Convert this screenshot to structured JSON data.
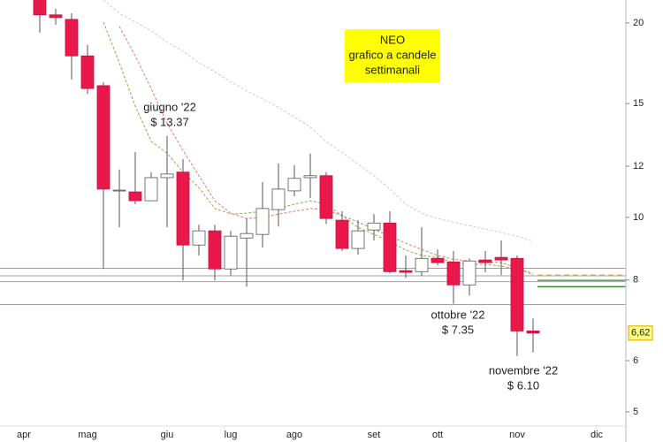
{
  "chart_data": {
    "type": "candlestick",
    "categories": [
      "apr",
      null,
      null,
      null,
      "mag",
      null,
      null,
      null,
      null,
      "giu",
      null,
      null,
      null,
      "lug",
      null,
      null,
      null,
      "ago",
      null,
      null,
      null,
      null,
      "set",
      null,
      null,
      null,
      "ott",
      null,
      null,
      null,
      null,
      "nov",
      null,
      null,
      null,
      null,
      "dic"
    ],
    "open": [
      null,
      22.5,
      20.58,
      20.25,
      17.78,
      15.99,
      11.0,
      10.95,
      10.61,
      11.52,
      11.75,
      9.06,
      9.53,
      8.32,
      9.29,
      9.41,
      10.28,
      10.99,
      11.52,
      11.6,
      9.9,
      8.95,
      9.56,
      9.8,
      8.27,
      8.24,
      8.64,
      8.53,
      7.86,
      8.59,
      8.67,
      8.64,
      6.67,
      null,
      null,
      null,
      null
    ],
    "high": [
      null,
      23.5,
      21.03,
      20.7,
      18.5,
      16.19,
      11.86,
      12.62,
      11.75,
      13.37,
      12.31,
      9.74,
      9.74,
      9.53,
      9.96,
      11.34,
      12.12,
      12.05,
      12.55,
      11.75,
      10.22,
      9.9,
      10.12,
      10.22,
      8.73,
      9.65,
      8.92,
      8.87,
      8.64,
      8.87,
      9.21,
      8.73,
      6.97,
      null,
      null,
      null,
      null
    ],
    "low": [
      null,
      19.32,
      19.87,
      16.35,
      15.52,
      8.32,
      9.65,
      10.48,
      10.61,
      9.65,
      7.99,
      8.73,
      7.99,
      8.12,
      7.81,
      8.98,
      9.68,
      10.78,
      10.71,
      9.77,
      8.87,
      8.76,
      9.21,
      8.19,
      8.06,
      8.12,
      8.43,
      7.35,
      7.57,
      8.22,
      8.14,
      6.1,
      6.18,
      null,
      null,
      null,
      null
    ],
    "close": [
      null,
      20.58,
      20.38,
      17.78,
      15.83,
      11.06,
      11.02,
      10.61,
      11.52,
      11.67,
      9.06,
      9.53,
      8.32,
      9.35,
      9.44,
      10.32,
      11.06,
      11.49,
      11.6,
      9.96,
      8.95,
      9.53,
      9.8,
      8.24,
      8.22,
      8.64,
      8.51,
      7.86,
      8.56,
      8.51,
      8.59,
      6.67,
      6.62,
      null,
      null,
      null,
      null
    ],
    "up_color": "#ffffff",
    "down_color": "#e8194a",
    "moving_averages": [
      {
        "color": "#8db040",
        "values": [
          null,
          null,
          null,
          null,
          null,
          20.06,
          17.35,
          14.86,
          13.11,
          12.57,
          11.75,
          11.12,
          10.32,
          10.12,
          10.15,
          10.22,
          10.32,
          10.48,
          10.61,
          10.48,
          10.06,
          9.65,
          9.41,
          9.18,
          8.9,
          8.73,
          8.67,
          8.51,
          8.46,
          8.46,
          8.4,
          8.32,
          8.19,
          null,
          null,
          null,
          null
        ]
      },
      {
        "color": "#e07a7a",
        "values": [
          null,
          null,
          null,
          null,
          null,
          null,
          19.75,
          17.78,
          15.83,
          13.98,
          12.7,
          11.6,
          10.61,
          10.15,
          9.96,
          9.99,
          10.12,
          10.22,
          10.32,
          10.28,
          10.06,
          9.83,
          9.59,
          9.35,
          9.12,
          8.92,
          8.73,
          8.61,
          8.56,
          8.53,
          8.51,
          8.35,
          8.14,
          null,
          null,
          null,
          null
        ]
      },
      {
        "color": "#cccccc",
        "values": [
          null,
          null,
          null,
          null,
          null,
          21.7,
          20.7,
          20.06,
          19.45,
          18.66,
          18.08,
          17.35,
          16.8,
          16.2,
          15.7,
          15.25,
          14.8,
          14.3,
          13.8,
          13.1,
          12.6,
          12.1,
          11.6,
          11.06,
          10.48,
          10.15,
          9.96,
          9.83,
          9.71,
          9.59,
          9.47,
          9.35,
          9.18,
          null,
          null,
          null,
          null
        ]
      }
    ],
    "hlines": {
      "color": "#a0a0a0",
      "values": [
        8.34,
        8.12,
        7.95,
        7.33
      ]
    },
    "right_levels": [
      {
        "value": 8.14,
        "color": "#f0a030",
        "dashed": true
      },
      {
        "value": 7.99,
        "color": "#2e8b2e",
        "dashed": false
      },
      {
        "value": 7.81,
        "color": "#2e8b2e",
        "dashed": false
      }
    ],
    "ylim": [
      4.49,
      21.7
    ],
    "yticks": [
      5,
      6,
      8,
      10,
      12,
      15,
      20
    ],
    "log_scale": true,
    "last_price": {
      "value": 6.62,
      "label": "6,62",
      "color": "#ffff80"
    },
    "note": {
      "lines": [
        "NEO",
        "grafico a candele",
        "settimanali"
      ],
      "color": "#ffff00"
    },
    "annotations": [
      {
        "lines": [
          "giugno '22",
          "$ 13.37"
        ]
      },
      {
        "lines": [
          "ottobre '22",
          "$ 7.35"
        ]
      },
      {
        "lines": [
          "novembre '22",
          "$ 6.10"
        ]
      }
    ]
  }
}
